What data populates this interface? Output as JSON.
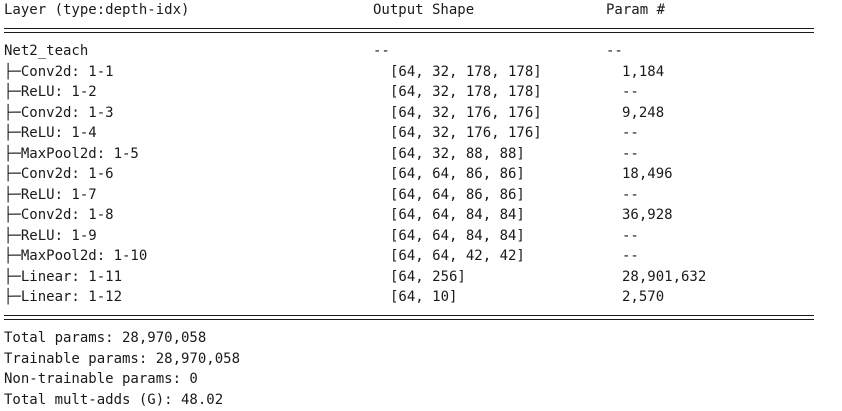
{
  "header": {
    "layer": "Layer (type:depth-idx)",
    "output": "Output Shape",
    "param": "Param #"
  },
  "model": {
    "name": "Net2_teach",
    "output": "--",
    "param": "--"
  },
  "layers": [
    {
      "name": "├─Conv2d: 1-1",
      "output": "[64, 32, 178, 178]",
      "param": "1,184"
    },
    {
      "name": "├─ReLU: 1-2",
      "output": "[64, 32, 178, 178]",
      "param": "--"
    },
    {
      "name": "├─Conv2d: 1-3",
      "output": "[64, 32, 176, 176]",
      "param": "9,248"
    },
    {
      "name": "├─ReLU: 1-4",
      "output": "[64, 32, 176, 176]",
      "param": "--"
    },
    {
      "name": "├─MaxPool2d: 1-5",
      "output": "[64, 32, 88, 88]",
      "param": "--"
    },
    {
      "name": "├─Conv2d: 1-6",
      "output": "[64, 64, 86, 86]",
      "param": "18,496"
    },
    {
      "name": "├─ReLU: 1-7",
      "output": "[64, 64, 86, 86]",
      "param": "--"
    },
    {
      "name": "├─Conv2d: 1-8",
      "output": "[64, 64, 84, 84]",
      "param": "36,928"
    },
    {
      "name": "├─ReLU: 1-9",
      "output": "[64, 64, 84, 84]",
      "param": "--"
    },
    {
      "name": "├─MaxPool2d: 1-10",
      "output": "[64, 64, 42, 42]",
      "param": "--"
    },
    {
      "name": "├─Linear: 1-11",
      "output": "[64, 256]",
      "param": "28,901,632"
    },
    {
      "name": "├─Linear: 1-12",
      "output": "[64, 10]",
      "param": "2,570"
    }
  ],
  "totals": [
    "Total params: 28,970,058",
    "Trainable params: 28,970,058",
    "Non-trainable params: 0",
    "Total mult-adds (G): 48.02"
  ]
}
